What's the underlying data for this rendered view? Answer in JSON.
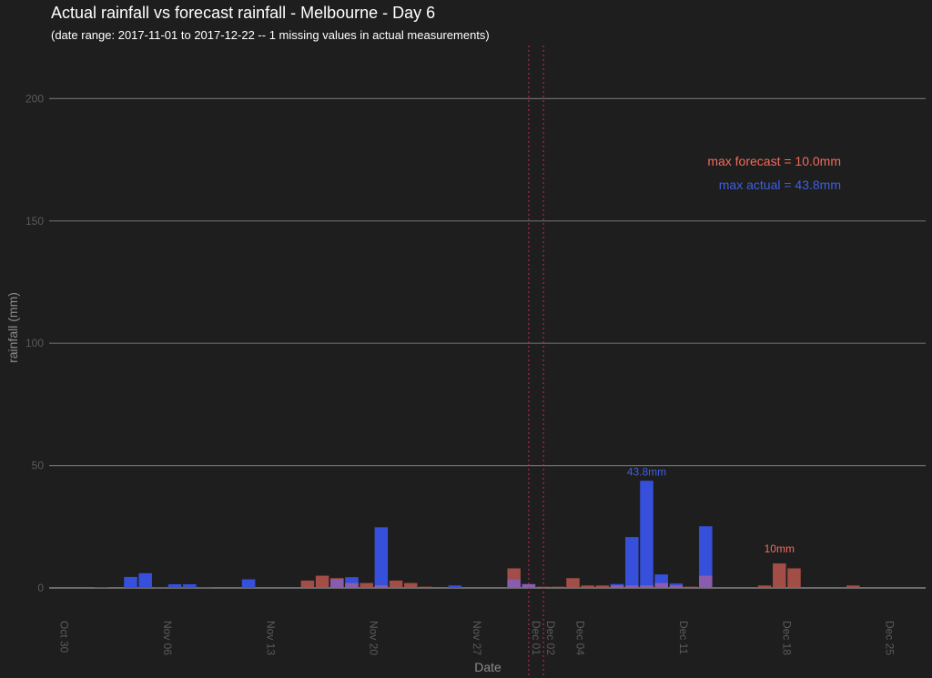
{
  "header": {
    "title": "Actual rainfall vs forecast rainfall - Melbourne - Day 6",
    "subtitle": "(date range: 2017-11-01 to 2017-12-22 -- 1 missing values in actual measurements)"
  },
  "annotations": {
    "max_forecast": "max forecast = 10.0mm",
    "max_actual": "max actual = 43.8mm",
    "actual_peak_label": "43.8mm",
    "forecast_peak_label": "10mm"
  },
  "colors": {
    "actual": "#3853e6",
    "forecast": "#b0524a",
    "overlap": "#8a5cad",
    "gridline": "#6a6a6a",
    "vline": "#c03050"
  },
  "chart_data": {
    "type": "bar",
    "xlabel": "Date",
    "ylabel": "rainfall (mm)",
    "ylim": [
      0,
      220
    ],
    "yticks": [
      0,
      50,
      100,
      150,
      200
    ],
    "x_ticks": [
      {
        "label": "Oct 30",
        "day": -2
      },
      {
        "label": "Nov 06",
        "day": 5
      },
      {
        "label": "Nov 13",
        "day": 12
      },
      {
        "label": "Nov 20",
        "day": 19
      },
      {
        "label": "Nov 27",
        "day": 26
      },
      {
        "label": "Dec 01",
        "day": 30
      },
      {
        "label": "Dec 02",
        "day": 31
      },
      {
        "label": "Dec 04",
        "day": 33
      },
      {
        "label": "Dec 11",
        "day": 40
      },
      {
        "label": "Dec 18",
        "day": 47
      },
      {
        "label": "Dec 25",
        "day": 54
      }
    ],
    "vlines": [
      30,
      31
    ],
    "series": [
      {
        "name": "actual",
        "values": [
          {
            "day": 1,
            "value": 0.3
          },
          {
            "day": 3,
            "value": 4.5
          },
          {
            "day": 4,
            "value": 6.0
          },
          {
            "day": 5,
            "value": 0.4
          },
          {
            "day": 6,
            "value": 1.5
          },
          {
            "day": 7,
            "value": 1.5
          },
          {
            "day": 8,
            "value": 0.4
          },
          {
            "day": 11,
            "value": 3.5
          },
          {
            "day": 17,
            "value": 3.6
          },
          {
            "day": 18,
            "value": 4.4
          },
          {
            "day": 20,
            "value": 24.8
          },
          {
            "day": 23,
            "value": 0.2
          },
          {
            "day": 25,
            "value": 1.0
          },
          {
            "day": 29,
            "value": 3.5
          },
          {
            "day": 30,
            "value": 1.6
          },
          {
            "day": 36,
            "value": 1.6
          },
          {
            "day": 37,
            "value": 20.8
          },
          {
            "day": 38,
            "value": 43.8
          },
          {
            "day": 39,
            "value": 5.5
          },
          {
            "day": 40,
            "value": 1.8
          },
          {
            "day": 42,
            "value": 25.2
          }
        ]
      },
      {
        "name": "forecast",
        "values": [
          {
            "day": 15,
            "value": 3.0
          },
          {
            "day": 16,
            "value": 5.0
          },
          {
            "day": 17,
            "value": 4.0
          },
          {
            "day": 18,
            "value": 2.0
          },
          {
            "day": 19,
            "value": 2.0
          },
          {
            "day": 20,
            "value": 1.0
          },
          {
            "day": 21,
            "value": 3.0
          },
          {
            "day": 22,
            "value": 2.0
          },
          {
            "day": 23,
            "value": 0.5
          },
          {
            "day": 29,
            "value": 8.0
          },
          {
            "day": 30,
            "value": 1.5
          },
          {
            "day": 31,
            "value": 0.5
          },
          {
            "day": 32,
            "value": 0.5
          },
          {
            "day": 33,
            "value": 4.0
          },
          {
            "day": 34,
            "value": 1.0
          },
          {
            "day": 35,
            "value": 1.0
          },
          {
            "day": 36,
            "value": 1.0
          },
          {
            "day": 37,
            "value": 1.0
          },
          {
            "day": 38,
            "value": 1.0
          },
          {
            "day": 39,
            "value": 2.0
          },
          {
            "day": 40,
            "value": 1.0
          },
          {
            "day": 41,
            "value": 0.5
          },
          {
            "day": 42,
            "value": 5.0
          },
          {
            "day": 46,
            "value": 1.0
          },
          {
            "day": 47,
            "value": 10.0
          },
          {
            "day": 48,
            "value": 8.0
          },
          {
            "day": 52,
            "value": 1.0
          }
        ]
      }
    ]
  }
}
